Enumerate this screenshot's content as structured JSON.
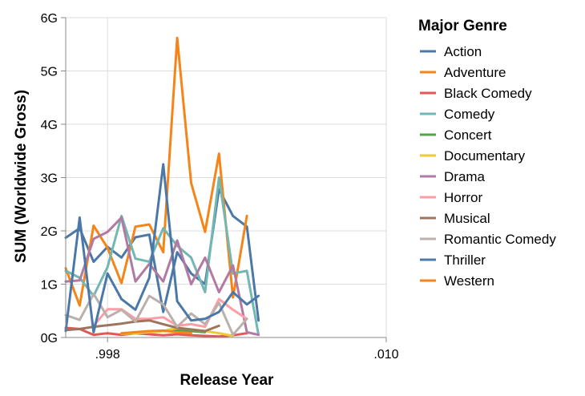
{
  "chart_data": {
    "type": "line",
    "title": "",
    "xlabel": "Release Year",
    "ylabel": "SUM (Worldwide Gross)",
    "x_ticks": [
      {
        "value": 1998,
        "label": ".998"
      },
      {
        "value": 2010,
        "label": ".010"
      }
    ],
    "y_ticks": [
      {
        "value": 0,
        "label": "0G"
      },
      {
        "value": 1,
        "label": "1G"
      },
      {
        "value": 2,
        "label": "2G"
      },
      {
        "value": 3,
        "label": "3G"
      },
      {
        "value": 4,
        "label": "4G"
      },
      {
        "value": 5,
        "label": "5G"
      },
      {
        "value": 6,
        "label": "6G"
      }
    ],
    "xlim": [
      1996.2,
      2010
    ],
    "ylim": [
      0,
      6
    ],
    "grid": true,
    "legend": {
      "title": "Major Genre",
      "position": "right"
    },
    "series": [
      {
        "name": "Action",
        "color": "#4c78a8",
        "points": [
          [
            1996.2,
            1.87
          ],
          [
            1996.8,
            2.05
          ],
          [
            1997.4,
            1.42
          ],
          [
            1998,
            1.7
          ],
          [
            1998.6,
            1.5
          ],
          [
            1999.2,
            1.88
          ],
          [
            1999.8,
            1.93
          ],
          [
            2000.4,
            0.48
          ],
          [
            2001,
            1.6
          ],
          [
            2001.6,
            1.2
          ],
          [
            2002.2,
            1.0
          ],
          [
            2002.8,
            2.78
          ],
          [
            2003.4,
            2.28
          ],
          [
            2004,
            2.08
          ],
          [
            2004.5,
            0.32
          ]
        ]
      },
      {
        "name": "Adventure",
        "color": "#f58518",
        "points": [
          [
            1996.2,
            1.3
          ],
          [
            1996.8,
            0.6
          ],
          [
            1997.4,
            2.1
          ],
          [
            1998,
            1.68
          ],
          [
            1998.6,
            1.02
          ],
          [
            1999.2,
            2.08
          ],
          [
            1999.8,
            2.12
          ],
          [
            2000.4,
            1.6
          ],
          [
            2001,
            5.62
          ],
          [
            2001.6,
            2.9
          ],
          [
            2002.2,
            1.98
          ],
          [
            2002.8,
            3.45
          ],
          [
            2003.4,
            0.75
          ],
          [
            2004,
            2.28
          ]
        ]
      },
      {
        "name": "Black Comedy",
        "color": "#e45756",
        "points": [
          [
            1996.2,
            0.18
          ],
          [
            1996.8,
            0.16
          ],
          [
            1997.4,
            0.05
          ],
          [
            1998,
            0.08
          ],
          [
            1998.6,
            0.05
          ],
          [
            1999.2,
            0.08
          ],
          [
            1999.8,
            0.06
          ],
          [
            2000.4,
            0.04
          ],
          [
            2001,
            0.06
          ],
          [
            2001.6,
            0.04
          ],
          [
            2002.2,
            0.03
          ],
          [
            2002.8,
            0.02
          ],
          [
            2003.4,
            0.04
          ],
          [
            2004,
            0.08
          ]
        ]
      },
      {
        "name": "Comedy",
        "color": "#72b7b2",
        "points": [
          [
            1996.2,
            1.25
          ],
          [
            1996.8,
            1.12
          ],
          [
            1997.4,
            0.78
          ],
          [
            1998,
            1.32
          ],
          [
            1998.6,
            2.28
          ],
          [
            1999.2,
            1.48
          ],
          [
            1999.8,
            1.42
          ],
          [
            2000.4,
            2.05
          ],
          [
            2001,
            1.72
          ],
          [
            2001.6,
            1.5
          ],
          [
            2002.2,
            0.85
          ],
          [
            2002.8,
            3.0
          ],
          [
            2003.4,
            1.2
          ],
          [
            2004,
            1.25
          ],
          [
            2004.5,
            0.05
          ]
        ]
      },
      {
        "name": "Concert",
        "color": "#54a24b",
        "points": [
          [
            1998.6,
            0.06
          ],
          [
            1999.2,
            0.08
          ],
          [
            1999.8,
            0.1
          ],
          [
            2000.4,
            0.12
          ],
          [
            2001,
            0.13
          ],
          [
            2001.6,
            0.12
          ],
          [
            2002.2,
            0.1
          ]
        ]
      },
      {
        "name": "Documentary",
        "color": "#eeca3b",
        "points": [
          [
            1998.6,
            0.07
          ],
          [
            1999.2,
            0.08
          ],
          [
            1999.8,
            0.1
          ],
          [
            2000.4,
            0.12
          ],
          [
            2001,
            0.18
          ],
          [
            2001.6,
            0.15
          ],
          [
            2002.2,
            0.12
          ],
          [
            2002.8,
            0.08
          ],
          [
            2003.4,
            0.03
          ]
        ]
      },
      {
        "name": "Drama",
        "color": "#b279a2",
        "points": [
          [
            1996.2,
            1.05
          ],
          [
            1996.8,
            1.07
          ],
          [
            1997.4,
            1.85
          ],
          [
            1998,
            1.98
          ],
          [
            1998.6,
            2.25
          ],
          [
            1999.2,
            1.05
          ],
          [
            1999.8,
            1.38
          ],
          [
            2000.4,
            1.05
          ],
          [
            2001,
            1.82
          ],
          [
            2001.6,
            1.0
          ],
          [
            2002.2,
            1.5
          ],
          [
            2002.8,
            0.85
          ],
          [
            2003.4,
            1.35
          ],
          [
            2004,
            0.1
          ],
          [
            2004.5,
            0.05
          ]
        ]
      },
      {
        "name": "Horror",
        "color": "#ff9da6",
        "points": [
          [
            1997.4,
            0.22
          ],
          [
            1998,
            0.53
          ],
          [
            1998.6,
            0.53
          ],
          [
            1999.2,
            0.35
          ],
          [
            1999.8,
            0.35
          ],
          [
            2000.4,
            0.38
          ],
          [
            2001,
            0.22
          ],
          [
            2001.6,
            0.25
          ],
          [
            2002.2,
            0.2
          ],
          [
            2002.8,
            0.72
          ],
          [
            2003.4,
            0.52
          ],
          [
            2004,
            0.35
          ]
        ]
      },
      {
        "name": "Musical",
        "color": "#9d755d",
        "points": [
          [
            1996.2,
            0.14
          ],
          [
            1996.8,
            0.16
          ],
          [
            1997.4,
            0.2
          ],
          [
            1998,
            0.23
          ],
          [
            1998.6,
            0.26
          ],
          [
            1999.2,
            0.3
          ],
          [
            1999.8,
            0.32
          ],
          [
            2000.4,
            0.25
          ],
          [
            2001,
            0.18
          ],
          [
            2001.6,
            0.15
          ],
          [
            2002.2,
            0.12
          ],
          [
            2002.8,
            0.22
          ]
        ]
      },
      {
        "name": "Romantic Comedy",
        "color": "#bab0ac",
        "points": [
          [
            1996.2,
            0.42
          ],
          [
            1996.8,
            0.33
          ],
          [
            1997.4,
            0.82
          ],
          [
            1998,
            0.38
          ],
          [
            1998.6,
            0.52
          ],
          [
            1999.2,
            0.3
          ],
          [
            1999.8,
            0.78
          ],
          [
            2000.4,
            0.62
          ],
          [
            2001,
            0.2
          ],
          [
            2001.6,
            0.45
          ],
          [
            2002.2,
            0.25
          ],
          [
            2002.8,
            0.65
          ],
          [
            2003.4,
            0.05
          ],
          [
            2004,
            0.35
          ]
        ]
      },
      {
        "name": "Thriller",
        "color": "#4c78a8",
        "points": [
          [
            1996.2,
            0.12
          ],
          [
            1996.8,
            2.25
          ],
          [
            1997.4,
            0.1
          ],
          [
            1998,
            1.2
          ],
          [
            1998.6,
            0.72
          ],
          [
            1999.2,
            0.52
          ],
          [
            1999.8,
            1.12
          ],
          [
            2000.4,
            3.25
          ],
          [
            2001,
            0.68
          ],
          [
            2001.6,
            0.32
          ],
          [
            2002.2,
            0.35
          ],
          [
            2002.8,
            0.48
          ],
          [
            2003.4,
            0.85
          ],
          [
            2004,
            0.62
          ],
          [
            2004.5,
            0.78
          ]
        ]
      },
      {
        "name": "Western",
        "color": "#f58518",
        "points": [
          [
            1998.6,
            0.08
          ],
          [
            1999.2,
            0.1
          ],
          [
            1999.8,
            0.12
          ],
          [
            2000.4,
            0.13
          ],
          [
            2001,
            0.1
          ],
          [
            2001.6,
            0.08
          ]
        ]
      }
    ]
  }
}
